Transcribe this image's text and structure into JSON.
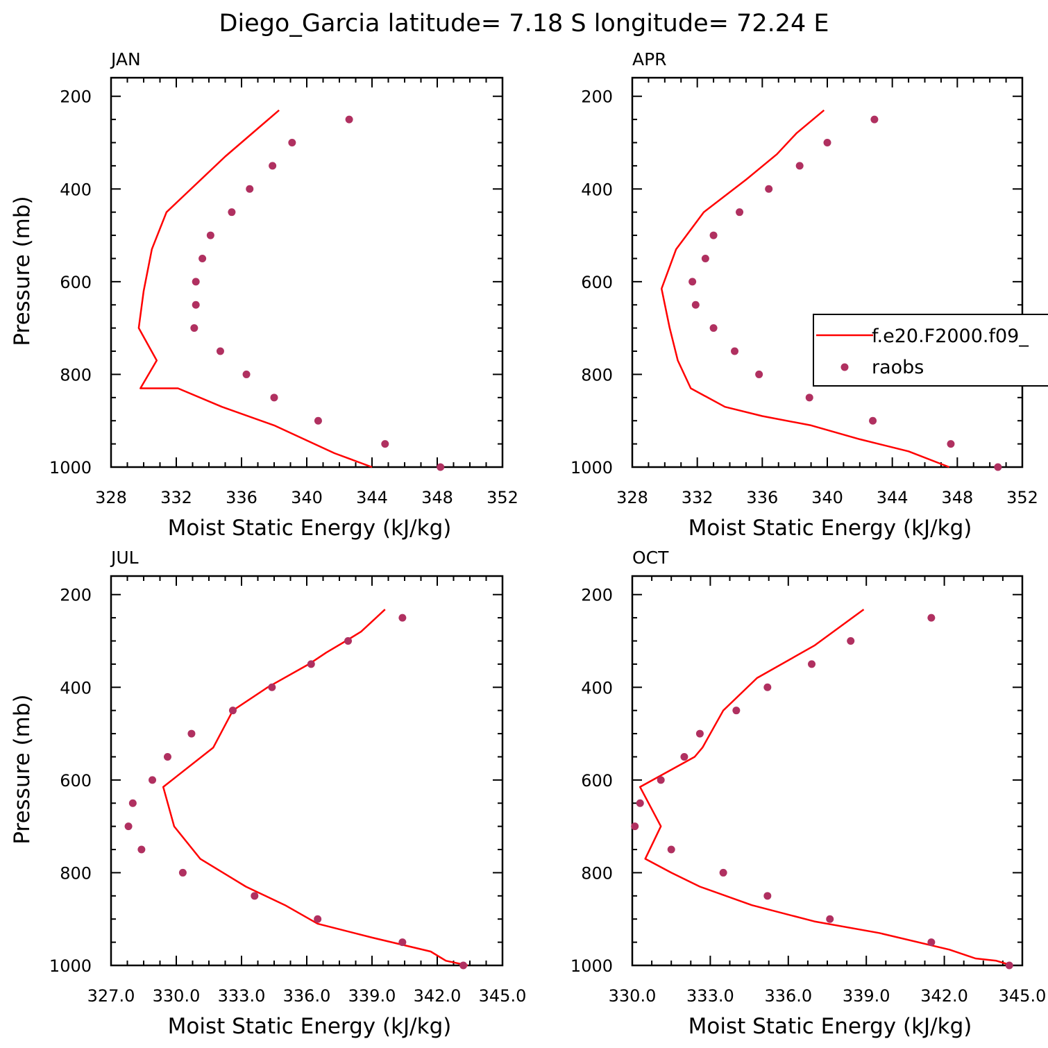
{
  "title": "Diego_Garcia  latitude= 7.18 S longitude= 72.24 E",
  "colors": {
    "model_line": "#ff0000",
    "obs_marker": "#b03060",
    "axes": "#000000"
  },
  "legend": {
    "placement": "inside APR panel, right edge, clipped",
    "entries": [
      {
        "label": "f.e20.F2000.f09_",
        "style": "line"
      },
      {
        "label": "raobs",
        "style": "marker"
      }
    ]
  },
  "chart_data": [
    {
      "type": "line",
      "panel": "JAN",
      "xlabel": "Moist Static Energy (kJ/kg)",
      "ylabel": "Pressure (mb)",
      "xlim": [
        328,
        352
      ],
      "ylim": [
        1000,
        200
      ],
      "y_reversed": true,
      "xticks": [
        "328",
        "332",
        "336",
        "340",
        "344",
        "348",
        "352"
      ],
      "yticks": [
        "200",
        "400",
        "600",
        "800",
        "1000"
      ],
      "series": [
        {
          "style": "line",
          "x": [
            344.0,
            341.7,
            338.0,
            334.8,
            332.1,
            329.8,
            330.8,
            329.7,
            330.0,
            330.5,
            331.4,
            335.0,
            338.3
          ],
          "y": [
            1000,
            970,
            910,
            870,
            830,
            830,
            770,
            700,
            620,
            530,
            450,
            330,
            230
          ]
        },
        {
          "style": "scatter",
          "x": [
            348.2,
            344.8,
            340.7,
            338.0,
            336.3,
            334.7,
            333.1,
            333.2,
            333.2,
            333.6,
            334.1,
            335.4,
            336.5,
            337.9,
            339.1,
            342.6
          ],
          "y": [
            1000,
            950,
            900,
            850,
            800,
            750,
            700,
            650,
            600,
            550,
            500,
            450,
            400,
            350,
            300,
            250
          ]
        }
      ]
    },
    {
      "type": "line",
      "panel": "APR",
      "xlabel": "Moist Static Energy (kJ/kg)",
      "ylabel": "",
      "xlim": [
        328,
        352
      ],
      "ylim": [
        1000,
        200
      ],
      "y_reversed": true,
      "xticks": [
        "328",
        "332",
        "336",
        "340",
        "344",
        "348",
        "352"
      ],
      "yticks": [
        "200",
        "400",
        "600",
        "800",
        "1000"
      ],
      "series": [
        {
          "style": "line",
          "x": [
            347.5,
            345.0,
            342.0,
            339.0,
            336.0,
            333.7,
            331.6,
            330.8,
            330.3,
            329.8,
            330.7,
            332.4,
            335.0,
            336.9,
            338.1,
            339.8
          ],
          "y": [
            1000,
            966,
            940,
            910,
            890,
            870,
            830,
            770,
            700,
            615,
            530,
            450,
            380,
            325,
            280,
            230
          ]
        },
        {
          "style": "scatter",
          "x": [
            350.5,
            347.6,
            342.8,
            338.9,
            335.8,
            334.3,
            333.0,
            331.9,
            331.7,
            332.5,
            333.0,
            334.6,
            336.4,
            338.3,
            340.0,
            342.9
          ],
          "y": [
            1000,
            950,
            900,
            850,
            800,
            750,
            700,
            650,
            600,
            550,
            500,
            450,
            400,
            350,
            300,
            250
          ]
        }
      ]
    },
    {
      "type": "line",
      "panel": "JUL",
      "xlabel": "Moist Static Energy (kJ/kg)",
      "ylabel": "Pressure (mb)",
      "xlim": [
        327,
        345
      ],
      "ylim": [
        1000,
        200
      ],
      "y_reversed": true,
      "xticks": [
        "327.0",
        "330.0",
        "333.0",
        "336.0",
        "339.0",
        "342.0",
        "345.0"
      ],
      "yticks": [
        "200",
        "400",
        "600",
        "800",
        "1000"
      ],
      "series": [
        {
          "style": "line",
          "x": [
            343.4,
            342.4,
            341.7,
            339.0,
            336.5,
            335.0,
            333.2,
            331.1,
            329.9,
            329.4,
            331.7,
            332.6,
            334.2,
            336.1,
            336.9,
            337.8,
            338.5,
            339.6
          ],
          "y": [
            1000,
            990,
            970,
            940,
            910,
            870,
            830,
            770,
            700,
            615,
            530,
            450,
            400,
            350,
            325,
            300,
            280,
            232
          ]
        },
        {
          "style": "scatter",
          "x": [
            343.2,
            340.4,
            336.5,
            333.6,
            330.3,
            328.4,
            327.8,
            328.0,
            328.9,
            329.6,
            330.7,
            332.6,
            334.4,
            336.2,
            337.9,
            340.4
          ],
          "y": [
            1000,
            950,
            900,
            850,
            800,
            750,
            700,
            650,
            600,
            550,
            500,
            450,
            400,
            350,
            300,
            250
          ]
        }
      ]
    },
    {
      "type": "line",
      "panel": "OCT",
      "xlabel": "Moist Static Energy (kJ/kg)",
      "ylabel": "",
      "xlim": [
        330,
        345
      ],
      "ylim": [
        1000,
        200
      ],
      "y_reversed": true,
      "xticks": [
        "330.0",
        "333.0",
        "336.0",
        "339.0",
        "342.0",
        "345.0"
      ],
      "yticks": [
        "200",
        "400",
        "600",
        "800",
        "1000"
      ],
      "series": [
        {
          "style": "line",
          "x": [
            344.6,
            344.0,
            343.2,
            342.2,
            339.5,
            337.0,
            334.6,
            332.6,
            331.5,
            330.5,
            331.1,
            330.3,
            332.4,
            332.7,
            333.5,
            334.8,
            337.0,
            338.9
          ],
          "y": [
            1000,
            990,
            985,
            966,
            930,
            905,
            870,
            830,
            800,
            770,
            700,
            615,
            550,
            530,
            450,
            380,
            310,
            232
          ]
        },
        {
          "style": "scatter",
          "x": [
            344.5,
            341.5,
            337.6,
            335.2,
            333.5,
            331.5,
            330.1,
            330.3,
            331.1,
            332.0,
            332.6,
            334.0,
            335.2,
            336.9,
            338.4,
            341.5
          ],
          "y": [
            1000,
            950,
            900,
            850,
            800,
            750,
            700,
            650,
            600,
            550,
            500,
            450,
            400,
            350,
            300,
            250
          ]
        }
      ]
    }
  ]
}
